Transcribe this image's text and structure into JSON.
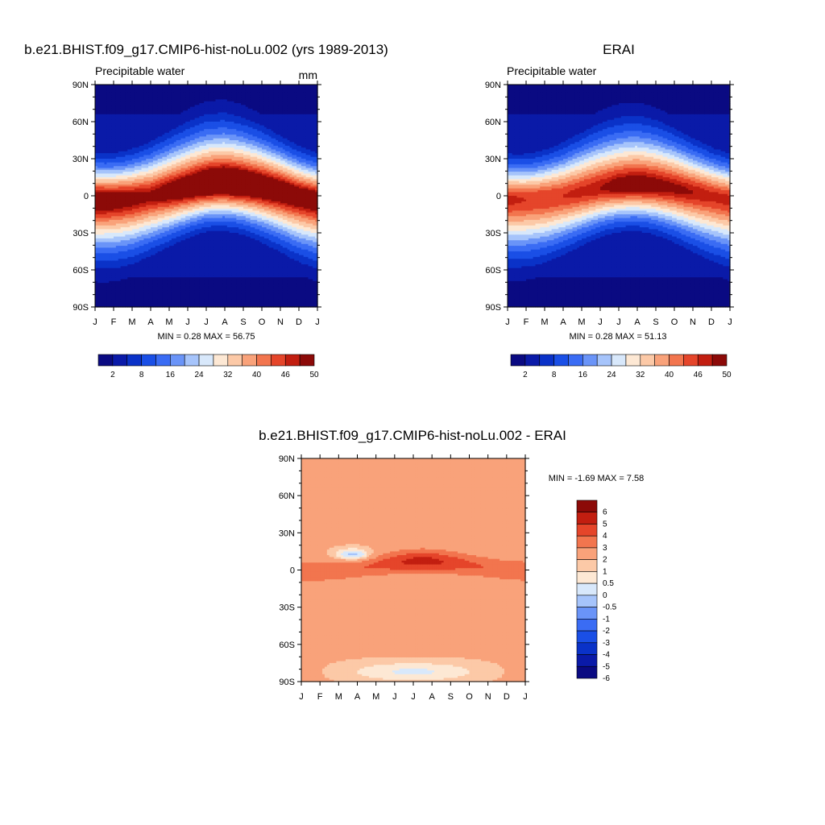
{
  "panels": [
    {
      "id": "model",
      "title": "b.e21.BHIST.f09_g17.CMIP6-hist-noLu.002 (yrs 1989-2013)",
      "subtitle": "Precipitable water",
      "units": "mm",
      "stats": "MIN =   0.28 MAX =  56.75"
    },
    {
      "id": "obs",
      "title": "ERAI",
      "subtitle": "Precipitable water",
      "units": "",
      "stats": "MIN =   0.28 MAX =  51.13"
    },
    {
      "id": "diff",
      "title": "b.e21.BHIST.f09_g17.CMIP6-hist-noLu.002 - ERAI",
      "subtitle": "",
      "units": "",
      "stats": "MIN =  -1.69 MAX =   7.58"
    }
  ],
  "chart_data": [
    {
      "type": "heatmap",
      "title": "b.e21.BHIST.f09_g17.CMIP6-hist-noLu.002 (yrs 1989-2013)",
      "subtitle": "Precipitable water",
      "units": "mm",
      "x_ticks": [
        "J",
        "F",
        "M",
        "A",
        "M",
        "J",
        "J",
        "A",
        "S",
        "O",
        "N",
        "D",
        "J"
      ],
      "y_ticks": [
        "90N",
        "60N",
        "30N",
        "0",
        "30S",
        "60S",
        "90S"
      ],
      "y_range": [
        -90,
        90
      ],
      "colorbar": {
        "orientation": "horizontal",
        "labels": [
          "2",
          "8",
          "16",
          "24",
          "32",
          "40",
          "46",
          "50"
        ]
      },
      "min": 0.28,
      "max": 56.75,
      "itcz_peak_lat_by_month": [
        -3,
        -3,
        -2,
        0,
        3,
        6,
        9,
        10,
        9,
        7,
        4,
        0
      ],
      "itcz_peak_value_by_month": [
        52,
        51,
        50,
        49,
        51,
        53,
        55,
        56,
        55,
        54,
        53,
        52
      ]
    },
    {
      "type": "heatmap",
      "title": "ERAI",
      "subtitle": "Precipitable water",
      "x_ticks": [
        "J",
        "F",
        "M",
        "A",
        "M",
        "J",
        "J",
        "A",
        "S",
        "O",
        "N",
        "D",
        "J"
      ],
      "y_ticks": [
        "90N",
        "60N",
        "30N",
        "0",
        "30S",
        "60S",
        "90S"
      ],
      "y_range": [
        -90,
        90
      ],
      "colorbar": {
        "orientation": "horizontal",
        "labels": [
          "2",
          "8",
          "16",
          "24",
          "32",
          "40",
          "46",
          "50"
        ]
      },
      "min": 0.28,
      "max": 51.13,
      "itcz_peak_lat_by_month": [
        -3,
        -3,
        -2,
        0,
        3,
        6,
        8,
        9,
        8,
        6,
        3,
        0
      ],
      "itcz_peak_value_by_month": [
        47,
        46,
        46,
        46,
        47,
        48,
        50,
        51,
        50,
        49,
        48,
        47
      ]
    },
    {
      "type": "heatmap",
      "title": "b.e21.BHIST.f09_g17.CMIP6-hist-noLu.002 - ERAI",
      "x_ticks": [
        "J",
        "F",
        "M",
        "A",
        "M",
        "J",
        "J",
        "A",
        "S",
        "O",
        "N",
        "D",
        "J"
      ],
      "y_ticks": [
        "90N",
        "60N",
        "30N",
        "0",
        "30S",
        "60S",
        "90S"
      ],
      "y_range": [
        -90,
        90
      ],
      "colorbar": {
        "orientation": "vertical",
        "labels": [
          "6",
          "5",
          "4",
          "3",
          "2",
          "1",
          "0.5",
          "0",
          "-0.5",
          "-1",
          "-2",
          "-3",
          "-4",
          "-5",
          "-6"
        ]
      },
      "min": -1.69,
      "max": 7.58
    }
  ],
  "colors": {
    "seq": [
      "#0a0a82",
      "#0a1aa8",
      "#0a32c8",
      "#1a4fe6",
      "#3a6cf4",
      "#6a94f8",
      "#a6c4fb",
      "#d8e8fb",
      "#fde8d4",
      "#fcc9a7",
      "#f9a27a",
      "#f2754e",
      "#e5452a",
      "#c21e10",
      "#8c0a08"
    ],
    "div": [
      "#0a0a82",
      "#0a1aa8",
      "#0a32c8",
      "#1a4fe6",
      "#3a6cf4",
      "#6a94f8",
      "#a6c4fb",
      "#d8e8fb",
      "#fde8d4",
      "#fcc9a7",
      "#f9a27a",
      "#f2754e",
      "#e5452a",
      "#c21e10",
      "#8c0a08"
    ]
  }
}
